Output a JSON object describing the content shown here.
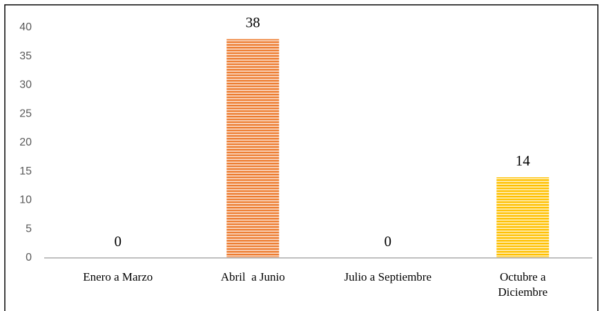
{
  "chart_data": {
    "type": "bar",
    "categories": [
      "Enero a Marzo",
      "Abril  a Junio",
      "Julio a Septiembre",
      "Octubre a\nDiciembre"
    ],
    "values": [
      0,
      38,
      0,
      14
    ],
    "colors": [
      "#ed7d31",
      "#ed7d31",
      "#ed7d31",
      "#ffc000"
    ],
    "ylim": [
      0,
      40
    ],
    "yticks": [
      0,
      5,
      10,
      15,
      20,
      25,
      30,
      35,
      40
    ],
    "grid": false
  }
}
